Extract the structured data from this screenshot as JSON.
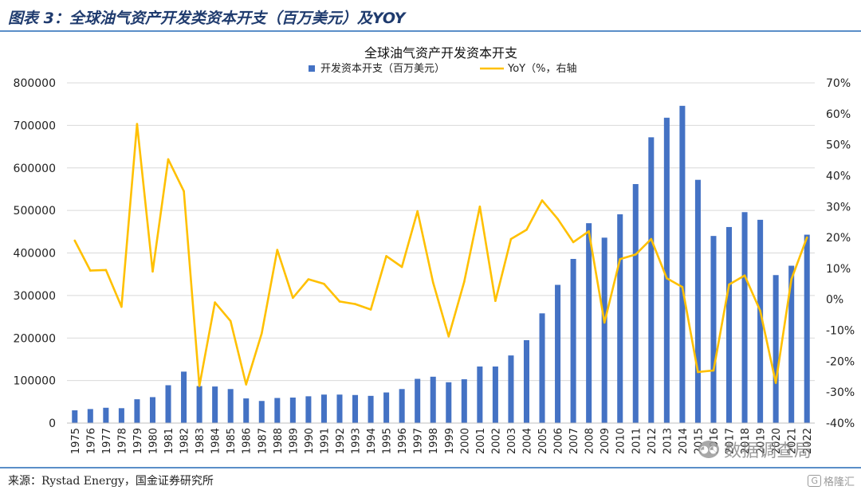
{
  "figure": {
    "title": "图表 3：全球油气资产开发类资本开支（百万美元）及YOY",
    "source": "来源：Rystad Energy，国金证券研究所"
  },
  "watermark": {
    "main": "数据调查局",
    "brand": "格隆汇",
    "brand_mark": "G"
  },
  "chart_data": {
    "type": "bar",
    "title": "全球油气资产开发资本开支",
    "categories": [
      "1975",
      "1976",
      "1977",
      "1978",
      "1979",
      "1980",
      "1981",
      "1982",
      "1983",
      "1984",
      "1985",
      "1986",
      "1987",
      "1988",
      "1989",
      "1990",
      "1991",
      "1992",
      "1993",
      "1994",
      "1995",
      "1996",
      "1997",
      "1998",
      "1999",
      "2000",
      "2001",
      "2002",
      "2003",
      "2004",
      "2005",
      "2006",
      "2007",
      "2008",
      "2009",
      "2010",
      "2011",
      "2012",
      "2013",
      "2014",
      "2015",
      "2016",
      "2017",
      "2018",
      "2019",
      "2020",
      "2021",
      "2022"
    ],
    "series": [
      {
        "name": "开发资本开支（百万美元）",
        "type": "bar",
        "axis": "left",
        "color": "#4472c4",
        "values": [
          30000,
          33000,
          36000,
          35000,
          56000,
          61000,
          89000,
          121000,
          87000,
          86000,
          80000,
          58000,
          52000,
          59000,
          60000,
          63000,
          67000,
          67000,
          66000,
          64000,
          72000,
          80000,
          104000,
          109000,
          96000,
          103000,
          133000,
          133000,
          159000,
          195000,
          258000,
          325000,
          386000,
          470000,
          436000,
          491000,
          562000,
          672000,
          718000,
          746000,
          572000,
          440000,
          461000,
          496000,
          478000,
          348000,
          370000,
          443000
        ]
      },
      {
        "name": "YoY（%，右轴",
        "type": "line",
        "axis": "right",
        "color": "#ffc000",
        "values": [
          19,
          9.3,
          9.5,
          -2.4,
          56.7,
          9,
          45.3,
          35,
          -28,
          -1,
          -7,
          -27.5,
          -11,
          16,
          0.5,
          6.5,
          5,
          -0.7,
          -1.5,
          -3.3,
          14,
          10.5,
          28.5,
          5.5,
          -12,
          5.7,
          30,
          -0.5,
          19.5,
          22.5,
          32,
          26,
          18.5,
          22,
          -7.5,
          13,
          14.5,
          19.5,
          6.8,
          4,
          -23.5,
          -23,
          4.8,
          7.7,
          -3.7,
          -27,
          6.5,
          20
        ]
      }
    ],
    "y_left": {
      "min": 0,
      "max": 800000,
      "step": 100000
    },
    "y_right": {
      "min": -40,
      "max": 70,
      "step": 10,
      "unit": "%"
    },
    "legend": {
      "position": "top"
    },
    "grid": true
  }
}
